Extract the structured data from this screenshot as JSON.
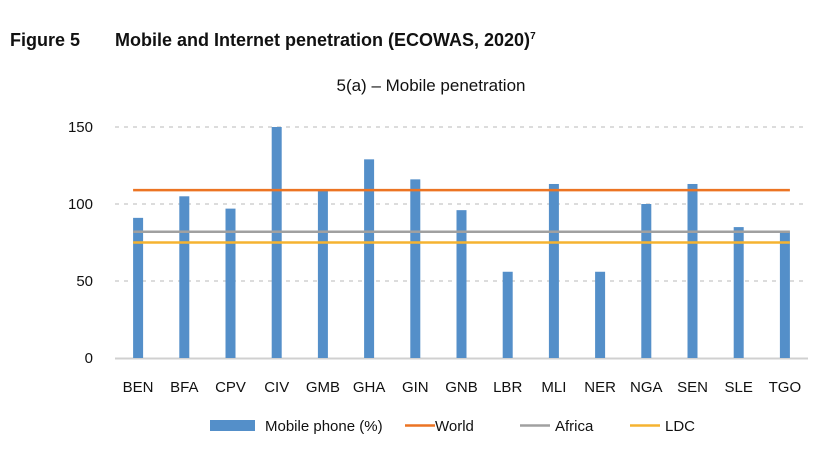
{
  "figure": {
    "label": "Figure 5",
    "title": "Mobile and Internet penetration (ECOWAS, 2020)",
    "footnote": "7"
  },
  "chart_data": {
    "type": "bar",
    "title": "5(a) – Mobile penetration",
    "xlabel": "",
    "ylabel": "",
    "ylim": [
      0,
      150
    ],
    "yticks": [
      0,
      50,
      100,
      150
    ],
    "grid": true,
    "legend_position": "bottom",
    "categories": [
      "BEN",
      "BFA",
      "CPV",
      "CIV",
      "GMB",
      "GHA",
      "GIN",
      "GNB",
      "LBR",
      "MLI",
      "NER",
      "NGA",
      "SEN",
      "SLE",
      "TGO"
    ],
    "series": [
      {
        "name": "Mobile phone (%)",
        "type": "bar",
        "color": "#548fc9",
        "values": [
          91,
          105,
          97,
          150,
          109,
          129,
          116,
          96,
          56,
          113,
          56,
          100,
          113,
          85,
          82
        ]
      },
      {
        "name": "World",
        "type": "line",
        "color": "#ec7423",
        "value": 109
      },
      {
        "name": "Africa",
        "type": "line",
        "color": "#a0a0a0",
        "value": 82
      },
      {
        "name": "LDC",
        "type": "line",
        "color": "#f5b330",
        "value": 75
      }
    ]
  }
}
